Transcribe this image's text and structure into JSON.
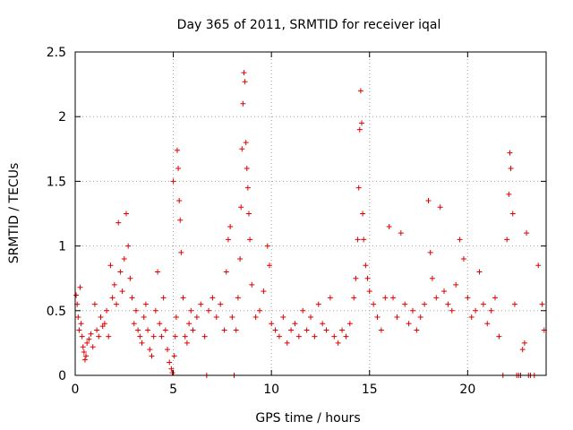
{
  "chart_data": {
    "type": "scatter",
    "title": "Day 365 of 2011, SRMTID for receiver iqal",
    "xlabel": "GPS time / hours",
    "ylabel": "SRMTID / TECUs",
    "xlim": [
      0,
      24
    ],
    "ylim": [
      0,
      2.5
    ],
    "xticks": [
      0,
      5,
      10,
      15,
      20
    ],
    "xtick_labels": [
      "0",
      "5",
      "10",
      "15",
      "20"
    ],
    "yticks": [
      0,
      0.5,
      1,
      1.5,
      2,
      2.5
    ],
    "ytick_labels": [
      "0",
      "0.5",
      "1",
      "1.5",
      "2",
      "2.5"
    ],
    "grid": true,
    "marker": "+",
    "colors": {
      "series": "#e00000",
      "grid": "#a0a0a0",
      "axis": "#000000"
    },
    "series": [
      {
        "name": "SRMTID",
        "points": [
          [
            0.05,
            0.62
          ],
          [
            0.1,
            0.55
          ],
          [
            0.15,
            0.45
          ],
          [
            0.2,
            0.35
          ],
          [
            0.25,
            0.68
          ],
          [
            0.3,
            0.4
          ],
          [
            0.35,
            0.3
          ],
          [
            0.4,
            0.22
          ],
          [
            0.45,
            0.18
          ],
          [
            0.5,
            0.12
          ],
          [
            0.55,
            0.15
          ],
          [
            0.6,
            0.25
          ],
          [
            0.7,
            0.28
          ],
          [
            0.8,
            0.32
          ],
          [
            0.9,
            0.22
          ],
          [
            1.0,
            0.55
          ],
          [
            1.1,
            0.35
          ],
          [
            1.2,
            0.3
          ],
          [
            1.3,
            0.45
          ],
          [
            1.4,
            0.38
          ],
          [
            1.5,
            0.4
          ],
          [
            1.6,
            0.5
          ],
          [
            1.7,
            0.3
          ],
          [
            1.8,
            0.85
          ],
          [
            1.9,
            0.6
          ],
          [
            2.0,
            0.7
          ],
          [
            2.1,
            0.55
          ],
          [
            2.2,
            1.18
          ],
          [
            2.3,
            0.8
          ],
          [
            2.4,
            0.65
          ],
          [
            2.5,
            0.9
          ],
          [
            2.6,
            1.25
          ],
          [
            2.7,
            1.0
          ],
          [
            2.8,
            0.75
          ],
          [
            2.9,
            0.6
          ],
          [
            3.0,
            0.4
          ],
          [
            3.1,
            0.5
          ],
          [
            3.2,
            0.35
          ],
          [
            3.3,
            0.3
          ],
          [
            3.4,
            0.25
          ],
          [
            3.5,
            0.45
          ],
          [
            3.6,
            0.55
          ],
          [
            3.7,
            0.35
          ],
          [
            3.8,
            0.2
          ],
          [
            3.9,
            0.15
          ],
          [
            4.0,
            0.3
          ],
          [
            4.1,
            0.5
          ],
          [
            4.2,
            0.8
          ],
          [
            4.3,
            0.4
          ],
          [
            4.4,
            0.3
          ],
          [
            4.5,
            0.6
          ],
          [
            4.6,
            0.35
          ],
          [
            4.7,
            0.2
          ],
          [
            4.8,
            0.1
          ],
          [
            4.9,
            0.05
          ],
          [
            4.95,
            0.02
          ],
          [
            5.0,
            1.5
          ],
          [
            5.05,
            0.15
          ],
          [
            5.1,
            0.3
          ],
          [
            5.15,
            0.45
          ],
          [
            5.2,
            1.74
          ],
          [
            5.25,
            1.6
          ],
          [
            5.3,
            1.35
          ],
          [
            5.35,
            1.2
          ],
          [
            5.4,
            0.95
          ],
          [
            5.5,
            0.6
          ],
          [
            5.6,
            0.3
          ],
          [
            5.7,
            0.25
          ],
          [
            5.8,
            0.4
          ],
          [
            5.9,
            0.5
          ],
          [
            6.0,
            0.35
          ],
          [
            6.2,
            0.45
          ],
          [
            6.4,
            0.55
          ],
          [
            6.6,
            0.3
          ],
          [
            6.7,
            0.0
          ],
          [
            6.8,
            0.5
          ],
          [
            7.0,
            0.6
          ],
          [
            7.2,
            0.45
          ],
          [
            7.4,
            0.55
          ],
          [
            7.6,
            0.35
          ],
          [
            7.7,
            0.8
          ],
          [
            7.8,
            1.05
          ],
          [
            7.9,
            1.15
          ],
          [
            8.0,
            0.45
          ],
          [
            8.1,
            0.0
          ],
          [
            8.2,
            0.35
          ],
          [
            8.3,
            0.6
          ],
          [
            8.4,
            0.9
          ],
          [
            8.45,
            1.3
          ],
          [
            8.5,
            1.75
          ],
          [
            8.55,
            2.1
          ],
          [
            8.6,
            2.34
          ],
          [
            8.65,
            2.27
          ],
          [
            8.7,
            1.8
          ],
          [
            8.75,
            1.6
          ],
          [
            8.8,
            1.45
          ],
          [
            8.85,
            1.25
          ],
          [
            8.9,
            1.05
          ],
          [
            9.0,
            0.7
          ],
          [
            9.2,
            0.45
          ],
          [
            9.4,
            0.5
          ],
          [
            9.6,
            0.65
          ],
          [
            9.8,
            1.0
          ],
          [
            9.9,
            0.85
          ],
          [
            10.0,
            0.4
          ],
          [
            10.2,
            0.35
          ],
          [
            10.4,
            0.3
          ],
          [
            10.6,
            0.45
          ],
          [
            10.8,
            0.25
          ],
          [
            11.0,
            0.35
          ],
          [
            11.2,
            0.4
          ],
          [
            11.4,
            0.3
          ],
          [
            11.6,
            0.5
          ],
          [
            11.8,
            0.35
          ],
          [
            12.0,
            0.45
          ],
          [
            12.2,
            0.3
          ],
          [
            12.4,
            0.55
          ],
          [
            12.6,
            0.4
          ],
          [
            12.8,
            0.35
          ],
          [
            13.0,
            0.6
          ],
          [
            13.2,
            0.3
          ],
          [
            13.4,
            0.25
          ],
          [
            13.6,
            0.35
          ],
          [
            13.8,
            0.3
          ],
          [
            14.0,
            0.4
          ],
          [
            14.2,
            0.6
          ],
          [
            14.3,
            0.75
          ],
          [
            14.4,
            1.05
          ],
          [
            14.45,
            1.45
          ],
          [
            14.5,
            1.9
          ],
          [
            14.55,
            2.2
          ],
          [
            14.6,
            1.95
          ],
          [
            14.65,
            1.25
          ],
          [
            14.7,
            1.05
          ],
          [
            14.8,
            0.85
          ],
          [
            14.9,
            0.75
          ],
          [
            15.0,
            0.65
          ],
          [
            15.2,
            0.55
          ],
          [
            15.4,
            0.45
          ],
          [
            15.6,
            0.35
          ],
          [
            15.8,
            0.6
          ],
          [
            16.0,
            1.15
          ],
          [
            16.2,
            0.6
          ],
          [
            16.4,
            0.45
          ],
          [
            16.6,
            1.1
          ],
          [
            16.8,
            0.55
          ],
          [
            17.0,
            0.4
          ],
          [
            17.2,
            0.5
          ],
          [
            17.4,
            0.35
          ],
          [
            17.6,
            0.45
          ],
          [
            17.8,
            0.55
          ],
          [
            18.0,
            1.35
          ],
          [
            18.1,
            0.95
          ],
          [
            18.2,
            0.75
          ],
          [
            18.4,
            0.6
          ],
          [
            18.6,
            1.3
          ],
          [
            18.8,
            0.65
          ],
          [
            19.0,
            0.55
          ],
          [
            19.2,
            0.5
          ],
          [
            19.4,
            0.7
          ],
          [
            19.6,
            1.05
          ],
          [
            19.8,
            0.9
          ],
          [
            20.0,
            0.6
          ],
          [
            20.2,
            0.45
          ],
          [
            20.4,
            0.5
          ],
          [
            20.6,
            0.8
          ],
          [
            20.8,
            0.55
          ],
          [
            21.0,
            0.4
          ],
          [
            21.2,
            0.5
          ],
          [
            21.4,
            0.6
          ],
          [
            21.6,
            0.3
          ],
          [
            21.8,
            0.0
          ],
          [
            22.0,
            1.05
          ],
          [
            22.1,
            1.4
          ],
          [
            22.15,
            1.72
          ],
          [
            22.2,
            1.6
          ],
          [
            22.3,
            1.25
          ],
          [
            22.4,
            0.55
          ],
          [
            22.5,
            0.0
          ],
          [
            22.6,
            0.0
          ],
          [
            22.7,
            0.0
          ],
          [
            22.8,
            0.2
          ],
          [
            22.9,
            0.25
          ],
          [
            23.0,
            1.1
          ],
          [
            23.1,
            0.0
          ],
          [
            23.2,
            0.0
          ],
          [
            23.4,
            0.0
          ],
          [
            23.6,
            0.85
          ],
          [
            23.8,
            0.55
          ],
          [
            23.9,
            0.35
          ]
        ]
      }
    ]
  }
}
